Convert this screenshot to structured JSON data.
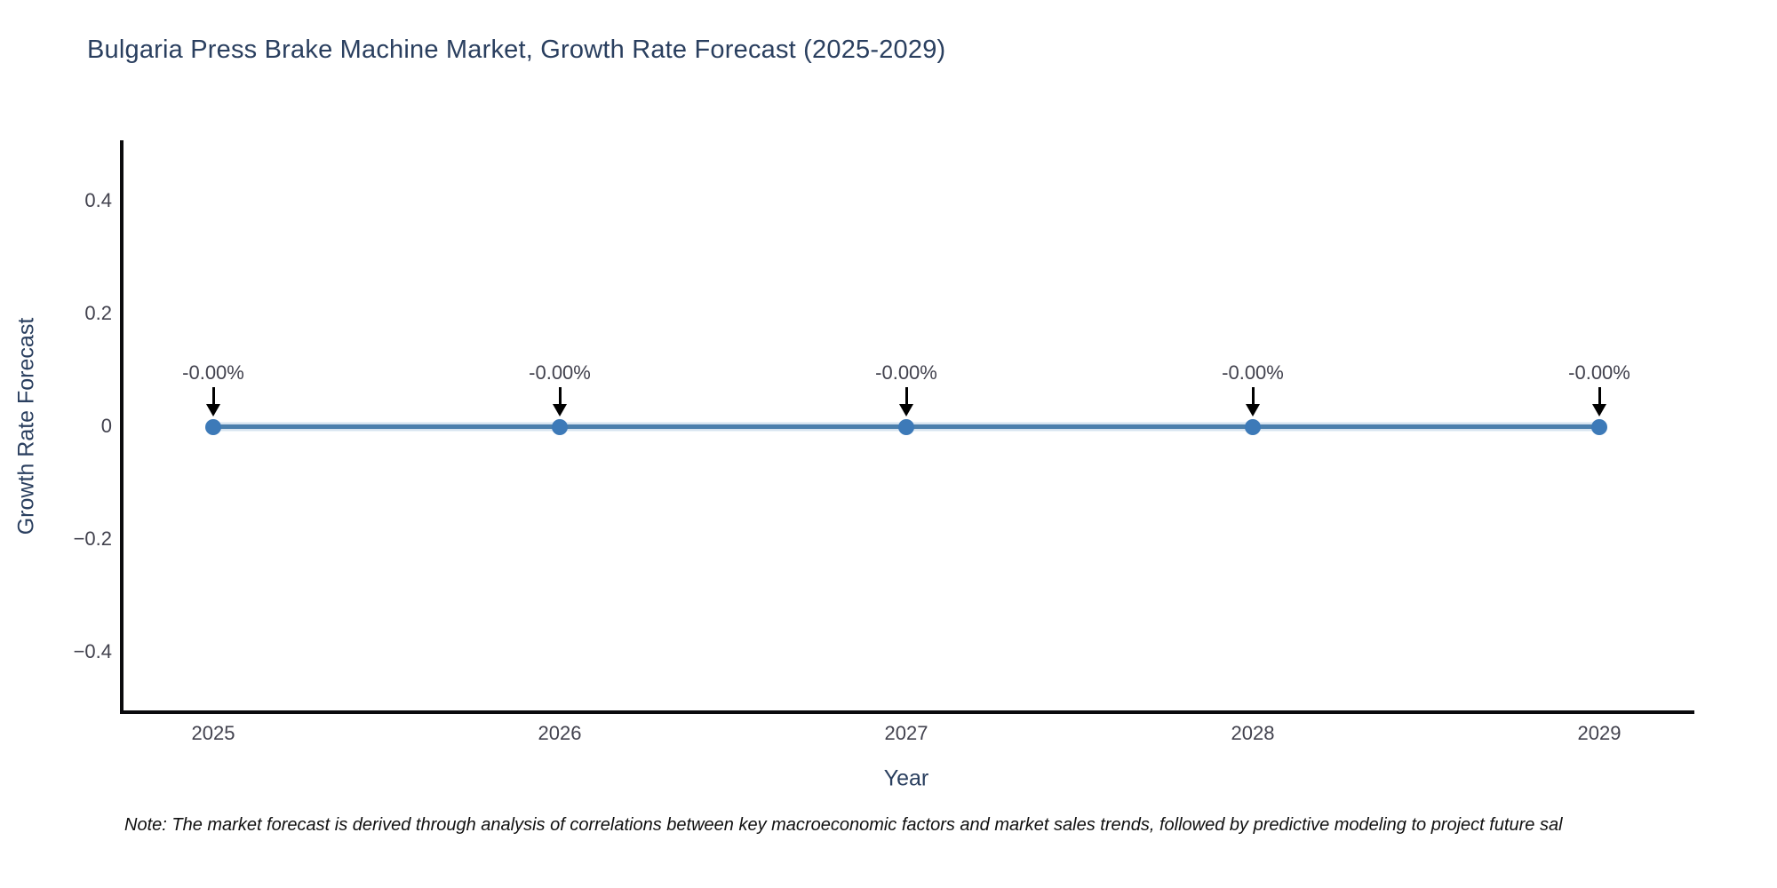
{
  "chart": {
    "title": "Bulgaria Press Brake Machine Market, Growth Rate Forecast (2025-2029)",
    "note": "Note: The market forecast is derived through analysis of correlations between key macroeconomic factors and market sales trends, followed by predictive modeling to project future sal"
  },
  "chart_data": {
    "type": "line",
    "title": "Bulgaria Press Brake Machine Market, Growth Rate Forecast (2025-2029)",
    "xlabel": "Year",
    "ylabel": "Growth Rate Forecast",
    "x": [
      2025,
      2026,
      2027,
      2028,
      2029
    ],
    "y": [
      0,
      0,
      0,
      0,
      0
    ],
    "xtick_labels": [
      "2025",
      "2026",
      "2027",
      "2028",
      "2029"
    ],
    "ytick_labels": [
      "0.4",
      "0.2",
      "0",
      "−0.2",
      "−0.4"
    ],
    "ylim": [
      -0.5,
      0.5
    ],
    "grid": false,
    "legend": false,
    "line_color": "#4b7fad",
    "marker_color": "#3d7ab8",
    "axis_line_color": "#0b0b0d",
    "annotation_arrow_color": "#000000",
    "points": [
      {
        "x": "2025",
        "y": 0,
        "label": "-0.00%"
      },
      {
        "x": "2026",
        "y": 0,
        "label": "-0.00%"
      },
      {
        "x": "2027",
        "y": 0,
        "label": "-0.00%"
      },
      {
        "x": "2028",
        "y": 0,
        "label": "-0.00%"
      },
      {
        "x": "2029",
        "y": 0,
        "label": "-0.00%"
      }
    ]
  }
}
